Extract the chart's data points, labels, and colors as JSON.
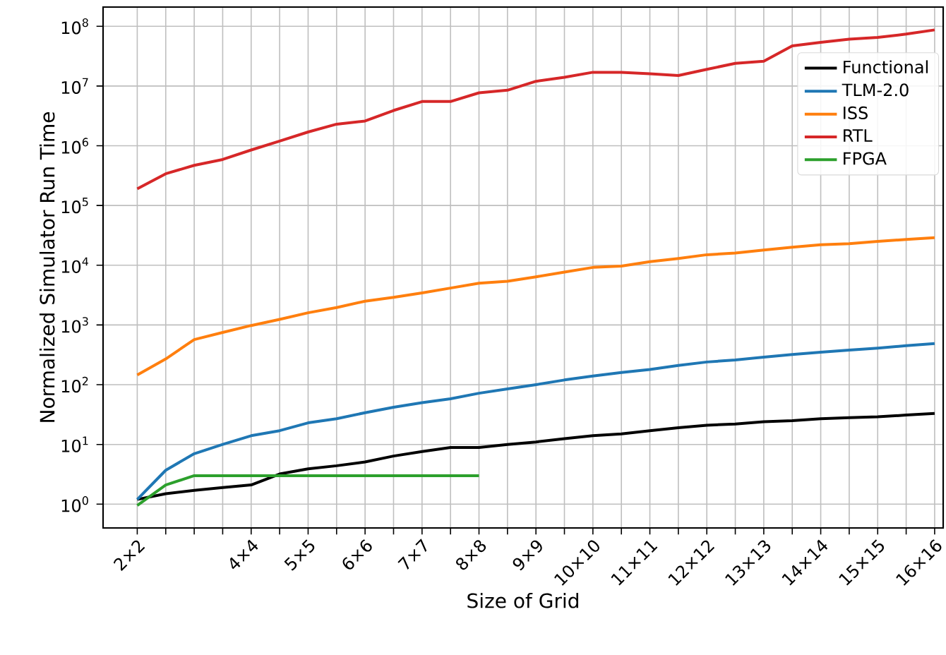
{
  "chart_data": {
    "type": "line",
    "xlabel": "Size of Grid",
    "ylabel": "Normalized Simulator Run Time",
    "categories": [
      "2×2",
      null,
      null,
      null,
      "4×4",
      null,
      "5×5",
      null,
      "6×6",
      null,
      "7×7",
      null,
      "8×8",
      null,
      "9×9",
      null,
      "10×10",
      null,
      "11×11",
      null,
      "12×12",
      null,
      "13×13",
      null,
      "14×14",
      null,
      "15×15",
      null,
      "16×16"
    ],
    "series": [
      {
        "name": "Functional",
        "color": "#000000",
        "values": [
          1.2,
          1.5,
          1.7,
          1.9,
          2.1,
          3.2,
          3.9,
          4.4,
          5.1,
          6.4,
          7.6,
          8.9,
          8.9,
          10,
          11,
          12.5,
          14,
          15,
          17,
          19,
          21,
          22,
          24,
          25,
          27,
          28,
          29,
          31,
          33
        ]
      },
      {
        "name": "TLM-2.0",
        "color": "#1f77b4",
        "values": [
          1.2,
          3.7,
          7,
          10,
          14,
          17,
          23,
          27,
          34,
          42,
          50,
          58,
          72,
          85,
          100,
          120,
          140,
          160,
          180,
          210,
          240,
          260,
          290,
          320,
          350,
          380,
          410,
          450,
          490
        ]
      },
      {
        "name": "ISS",
        "color": "#ff7f0e",
        "values": [
          146,
          270,
          570,
          750,
          980,
          1240,
          1600,
          1960,
          2500,
          2900,
          3450,
          4150,
          5000,
          5400,
          6400,
          7700,
          9200,
          9700,
          11500,
          13000,
          15000,
          16000,
          18000,
          20000,
          22000,
          23000,
          25000,
          27000,
          29000
        ]
      },
      {
        "name": "RTL",
        "color": "#d62728",
        "values": [
          190000,
          340000,
          470000,
          590000,
          850000,
          1200000,
          1700000,
          2300000,
          2600000,
          3900000,
          5500000,
          5500000,
          7700000,
          8500000,
          12000000,
          14000000,
          17000000,
          17000000,
          16000000,
          15000000,
          19000000,
          24000000,
          26000000,
          47000000,
          54000000,
          61000000,
          65000000,
          74000000,
          87000000
        ]
      },
      {
        "name": "FPGA",
        "color": "#2ca02c",
        "values": [
          0.95,
          2.1,
          3,
          3,
          3,
          3,
          3,
          3,
          3,
          3,
          3,
          3,
          3,
          null,
          null,
          null,
          null,
          null,
          null,
          null,
          null,
          null,
          null,
          null,
          null,
          null,
          null,
          null,
          null
        ]
      }
    ],
    "ylim": [
      0.4,
      210000000
    ],
    "yticks": [
      {
        "value": 1,
        "label": "10$^{0}$"
      },
      {
        "value": 10,
        "label": "10$^{1}$"
      },
      {
        "value": 100,
        "label": "10$^{2}$"
      },
      {
        "value": 1000,
        "label": "10$^{3}$"
      },
      {
        "value": 10000,
        "label": "10$^{4}$"
      },
      {
        "value": 100000,
        "label": "10$^{5}$"
      },
      {
        "value": 1000000,
        "label": "10$^{6}$"
      },
      {
        "value": 10000000,
        "label": "10$^{7}$"
      },
      {
        "value": 100000000,
        "label": "10$^{8}$"
      }
    ],
    "log": "y",
    "grid": true,
    "legend": "top right",
    "marker": "none",
    "line_style": "solid"
  }
}
